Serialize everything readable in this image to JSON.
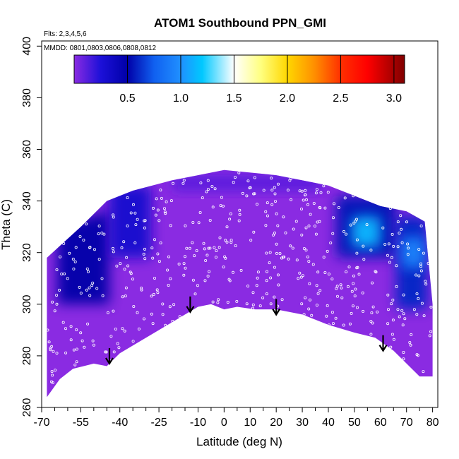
{
  "chart_data": {
    "type": "heatmap",
    "title": "ATOM1 Southbound PPN_GMI",
    "flights_label": "Flts: 2,3,4,5,6",
    "dates_label": "MMDD: 0801,0803,0806,0808,0812",
    "xlabel": "Latitude (deg N)",
    "ylabel": "Theta (C)",
    "xlim": [
      -70,
      82
    ],
    "ylim": [
      260,
      402
    ],
    "x_ticks": [
      -70,
      -55,
      -40,
      -25,
      -10,
      0,
      10,
      20,
      30,
      40,
      50,
      60,
      70,
      80
    ],
    "x_minor_ticks": [
      -65,
      -60,
      -50,
      -45,
      -35,
      -30,
      -20,
      -15,
      -5,
      5,
      15,
      25,
      35,
      45,
      55,
      65,
      75
    ],
    "y_ticks": [
      260,
      280,
      300,
      320,
      340,
      360,
      380,
      400
    ],
    "colorbar": {
      "range": [
        0,
        3.1
      ],
      "ticks": [
        0.5,
        1.0,
        1.5,
        2.0,
        2.5,
        3.0
      ],
      "tick_labels": [
        "0.5",
        "1.0",
        "1.5",
        "2.0",
        "2.5",
        "3.0"
      ],
      "stops": [
        {
          "v": 0.0,
          "color": "#8a2be2"
        },
        {
          "v": 0.25,
          "color": "#1c10d8"
        },
        {
          "v": 0.5,
          "color": "#0000a8"
        },
        {
          "v": 0.75,
          "color": "#1060f0"
        },
        {
          "v": 1.0,
          "color": "#2090ff"
        },
        {
          "v": 1.2,
          "color": "#00c8ff"
        },
        {
          "v": 1.5,
          "color": "#ffffff"
        },
        {
          "v": 1.75,
          "color": "#ffff80"
        },
        {
          "v": 2.0,
          "color": "#ffd700"
        },
        {
          "v": 2.25,
          "color": "#ff9000"
        },
        {
          "v": 2.5,
          "color": "#ff3000"
        },
        {
          "v": 2.75,
          "color": "#ff0000"
        },
        {
          "v": 3.1,
          "color": "#800000"
        }
      ]
    },
    "data_envelope": {
      "top": [
        [
          -68,
          318
        ],
        [
          -55,
          330
        ],
        [
          -45,
          340
        ],
        [
          -35,
          344
        ],
        [
          -20,
          348
        ],
        [
          -10,
          350
        ],
        [
          0,
          352
        ],
        [
          10,
          351
        ],
        [
          20,
          350
        ],
        [
          30,
          348
        ],
        [
          40,
          346
        ],
        [
          50,
          342
        ],
        [
          60,
          338
        ],
        [
          70,
          336
        ],
        [
          77,
          332
        ],
        [
          80,
          300
        ]
      ],
      "bottom": [
        [
          80,
          272
        ],
        [
          75,
          272
        ],
        [
          65,
          282
        ],
        [
          58,
          287
        ],
        [
          50,
          289
        ],
        [
          40,
          292
        ],
        [
          30,
          296
        ],
        [
          20,
          298
        ],
        [
          12,
          298
        ],
        [
          5,
          299
        ],
        [
          0,
          298
        ],
        [
          -5,
          300
        ],
        [
          -10,
          299
        ],
        [
          -15,
          296
        ],
        [
          -25,
          290
        ],
        [
          -40,
          281
        ],
        [
          -45,
          276
        ],
        [
          -50,
          277
        ],
        [
          -58,
          275
        ],
        [
          -63,
          271
        ],
        [
          -68,
          264
        ]
      ]
    },
    "value_patches": [
      {
        "x": [
          -64,
          -44
        ],
        "y": [
          300,
          336
        ],
        "value": 0.5,
        "shape": "wedge-left"
      },
      {
        "x": [
          -44,
          -28
        ],
        "y": [
          318,
          346
        ],
        "value": 0.3
      },
      {
        "x": [
          43,
          66
        ],
        "y": [
          318,
          342
        ],
        "value": 0.55
      },
      {
        "x": [
          49,
          60
        ],
        "y": [
          322,
          334
        ],
        "value": 1.15
      },
      {
        "x": [
          66,
          78
        ],
        "y": [
          298,
          334
        ],
        "value": 0.6
      },
      {
        "x": [
          68,
          77
        ],
        "y": [
          314,
          326
        ],
        "value": 0.95
      },
      {
        "x": [
          -20,
          38
        ],
        "y": [
          344,
          350
        ],
        "value": 0.12
      }
    ],
    "obs_point_count": 470,
    "tropopause_arrows": [
      {
        "lat": -44,
        "theta": 283
      },
      {
        "lat": -13,
        "theta": 303
      },
      {
        "lat": 20,
        "theta": 302
      },
      {
        "lat": 61,
        "theta": 288
      }
    ]
  }
}
